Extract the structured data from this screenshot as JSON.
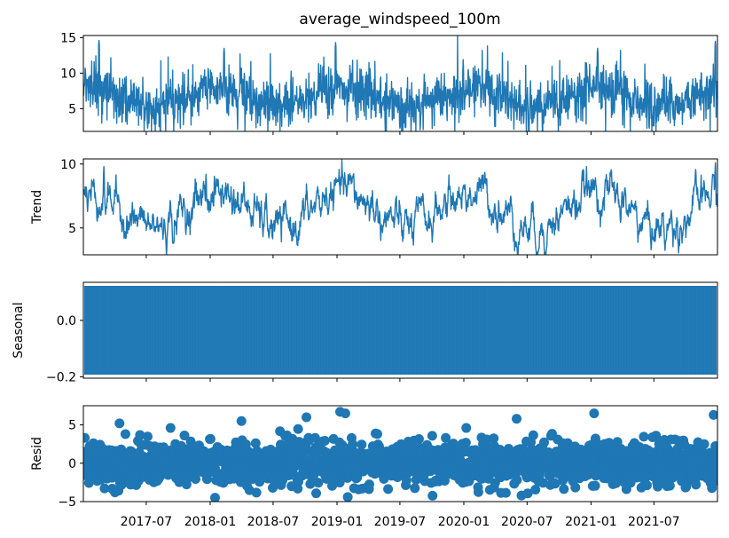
{
  "chart_data": [
    {
      "type": "line",
      "panel": "observed",
      "title": "average_windspeed_100m",
      "ylabel": "",
      "ylim": [
        1.8,
        15.3
      ],
      "yticks": [
        5,
        10,
        15
      ],
      "ytick_labels": [
        "5",
        "10",
        "15"
      ],
      "x_start": "2017-01-01",
      "x_end": "2021-12-31",
      "baseline": 6.6,
      "amplitude": 1.3,
      "noise": 2.3,
      "peaks": [
        {
          "x": "2017-02-15",
          "y": 14.6
        },
        {
          "x": "2018-02-10",
          "y": 13.5
        },
        {
          "x": "2018-12-28",
          "y": 14.3
        },
        {
          "x": "2021-01-20",
          "y": 13.5
        },
        {
          "x": "2021-12-25",
          "y": 14.5
        }
      ],
      "color": "#1f77b4",
      "grid": false
    },
    {
      "type": "line",
      "panel": "trend",
      "ylabel": "Trend",
      "ylim": [
        2.9,
        10.4
      ],
      "yticks": [
        5,
        10
      ],
      "ytick_labels": [
        "5",
        "10"
      ],
      "x_start": "2017-01-01",
      "x_end": "2021-12-31",
      "baseline": 6.4,
      "amplitude": 1.4,
      "noise": 0.9,
      "peaks": [
        {
          "x": "2017-03-01",
          "y": 9.8
        },
        {
          "x": "2017-12-20",
          "y": 9.2
        },
        {
          "x": "2021-12-25",
          "y": 10.1
        }
      ],
      "color": "#1f77b4",
      "grid": false
    },
    {
      "type": "line",
      "panel": "seasonal",
      "ylabel": "Seasonal",
      "ylim": [
        -0.205,
        0.135
      ],
      "yticks": [
        -0.2,
        0.0
      ],
      "ytick_labels": [
        "−0.2",
        "0.0"
      ],
      "x_start": "2017-01-01",
      "x_end": "2021-12-31",
      "band_min": -0.19,
      "band_max": 0.12,
      "color": "#1f77b4",
      "grid": false
    },
    {
      "type": "scatter",
      "panel": "resid",
      "ylabel": "Resid",
      "ylim": [
        -5,
        7.5
      ],
      "yticks": [
        -5,
        0,
        5
      ],
      "ytick_labels": [
        "−5",
        "0",
        "5"
      ],
      "x_start": "2017-01-01",
      "x_end": "2021-12-31",
      "spread": 1.4,
      "outliers": [
        {
          "x": "2017-04-15",
          "y": 5.2
        },
        {
          "x": "2018-04-01",
          "y": 5.5
        },
        {
          "x": "2018-10-05",
          "y": 6.0
        },
        {
          "x": "2019-01-10",
          "y": 6.7
        },
        {
          "x": "2019-01-25",
          "y": 6.5
        },
        {
          "x": "2020-06-01",
          "y": 5.8
        },
        {
          "x": "2021-01-10",
          "y": 6.5
        },
        {
          "x": "2021-12-20",
          "y": 6.3
        },
        {
          "x": "2018-01-15",
          "y": -4.5
        },
        {
          "x": "2019-02-01",
          "y": -4.4
        },
        {
          "x": "2020-06-15",
          "y": -4.2
        }
      ],
      "color": "#1f77b4",
      "grid": false
    }
  ],
  "xaxis": {
    "ticks": [
      "2017-07-01",
      "2018-01-01",
      "2018-07-01",
      "2019-01-01",
      "2019-07-01",
      "2020-01-01",
      "2020-07-01",
      "2021-01-01",
      "2021-07-01"
    ],
    "tick_labels": [
      "2017-07",
      "2018-01",
      "2018-07",
      "2019-01",
      "2019-07",
      "2020-01",
      "2020-07",
      "2021-01",
      "2021-07"
    ]
  }
}
